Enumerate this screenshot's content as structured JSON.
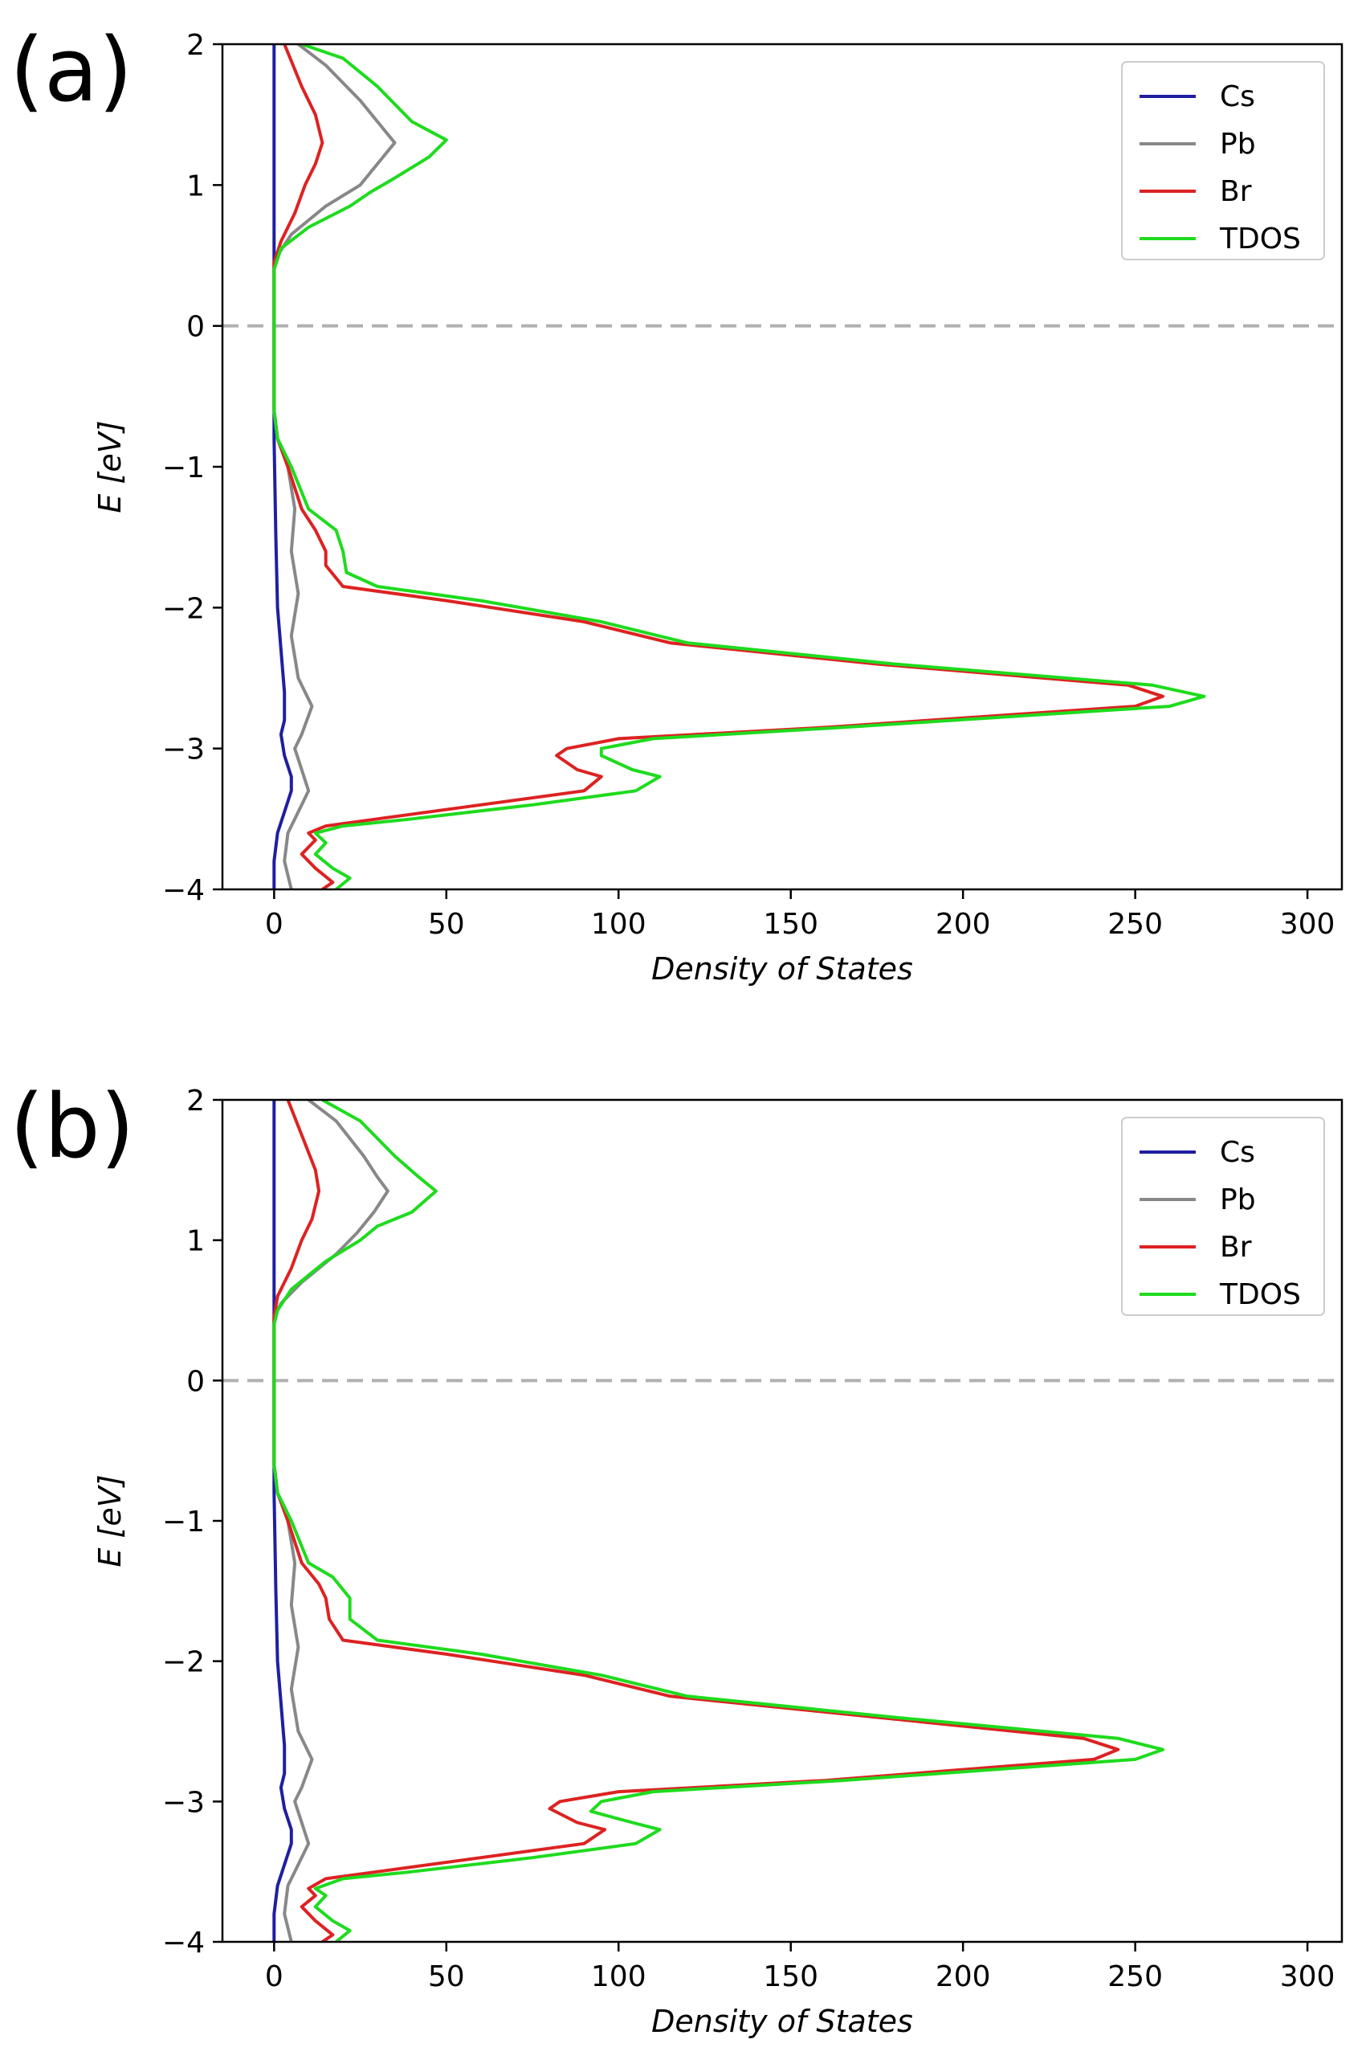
{
  "chart_data": [
    {
      "type": "line",
      "panel_label": "(a)",
      "xlabel": "Density of States",
      "ylabel": "E  [eV]",
      "xlim": [
        -15,
        310
      ],
      "ylim": [
        -4,
        2
      ],
      "xticks": [
        0,
        50,
        100,
        150,
        200,
        250,
        300
      ],
      "yticks": [
        2,
        1,
        0,
        -1,
        -2,
        -3,
        -4
      ],
      "xtick_labels": [
        "0",
        "50",
        "100",
        "150",
        "200",
        "250",
        "300"
      ],
      "ytick_labels": [
        "2",
        "1",
        "0",
        "−1",
        "−2",
        "−3",
        "−4"
      ],
      "fermi_level": 0,
      "legend_position": "top-right",
      "series": [
        {
          "name": "Cs",
          "color": "#1f1fa0",
          "points": [
            [
              0,
              2.0
            ],
            [
              0,
              1.0
            ],
            [
              0,
              0.5
            ],
            [
              0,
              -0.8
            ],
            [
              0.5,
              -1.5
            ],
            [
              1,
              -2.0
            ],
            [
              2,
              -2.3
            ],
            [
              3,
              -2.6
            ],
            [
              3,
              -2.8
            ],
            [
              2,
              -2.9
            ],
            [
              3,
              -3.05
            ],
            [
              5,
              -3.2
            ],
            [
              5,
              -3.3
            ],
            [
              3,
              -3.45
            ],
            [
              1,
              -3.6
            ],
            [
              0,
              -3.8
            ],
            [
              0,
              -4.0
            ]
          ]
        },
        {
          "name": "Pb",
          "color": "#888888",
          "points": [
            [
              7,
              2.0
            ],
            [
              15,
              1.85
            ],
            [
              25,
              1.6
            ],
            [
              30,
              1.45
            ],
            [
              35,
              1.3
            ],
            [
              30,
              1.15
            ],
            [
              25,
              1.0
            ],
            [
              15,
              0.85
            ],
            [
              5,
              0.65
            ],
            [
              1,
              0.5
            ],
            [
              0,
              0.4
            ],
            [
              0,
              -0.6
            ],
            [
              1,
              -0.8
            ],
            [
              4,
              -1.0
            ],
            [
              6,
              -1.3
            ],
            [
              5,
              -1.6
            ],
            [
              7,
              -1.9
            ],
            [
              5,
              -2.2
            ],
            [
              7,
              -2.5
            ],
            [
              11,
              -2.7
            ],
            [
              8,
              -2.9
            ],
            [
              6,
              -3.0
            ],
            [
              8,
              -3.15
            ],
            [
              10,
              -3.3
            ],
            [
              7,
              -3.45
            ],
            [
              4,
              -3.6
            ],
            [
              3,
              -3.8
            ],
            [
              5,
              -4.0
            ]
          ]
        },
        {
          "name": "Br",
          "color": "#dd2222",
          "points": [
            [
              3,
              2.0
            ],
            [
              8,
              1.7
            ],
            [
              12,
              1.5
            ],
            [
              14,
              1.3
            ],
            [
              12,
              1.15
            ],
            [
              9,
              1.0
            ],
            [
              6,
              0.8
            ],
            [
              2,
              0.6
            ],
            [
              0,
              0.45
            ],
            [
              0,
              -0.6
            ],
            [
              1,
              -0.8
            ],
            [
              4,
              -1.0
            ],
            [
              8,
              -1.3
            ],
            [
              12,
              -1.45
            ],
            [
              15,
              -1.6
            ],
            [
              15,
              -1.7
            ],
            [
              20,
              -1.85
            ],
            [
              50,
              -1.95
            ],
            [
              90,
              -2.1
            ],
            [
              115,
              -2.25
            ],
            [
              175,
              -2.4
            ],
            [
              248,
              -2.55
            ],
            [
              258,
              -2.63
            ],
            [
              250,
              -2.7
            ],
            [
              160,
              -2.85
            ],
            [
              100,
              -2.93
            ],
            [
              85,
              -3.0
            ],
            [
              82,
              -3.05
            ],
            [
              88,
              -3.15
            ],
            [
              95,
              -3.2
            ],
            [
              90,
              -3.3
            ],
            [
              60,
              -3.4
            ],
            [
              30,
              -3.5
            ],
            [
              15,
              -3.55
            ],
            [
              10,
              -3.6
            ],
            [
              12,
              -3.65
            ],
            [
              8,
              -3.75
            ],
            [
              12,
              -3.85
            ],
            [
              17,
              -3.95
            ],
            [
              14,
              -4.0
            ]
          ]
        },
        {
          "name": "TDOS",
          "color": "#1edb1e",
          "points": [
            [
              8,
              2.0
            ],
            [
              20,
              1.9
            ],
            [
              30,
              1.7
            ],
            [
              40,
              1.45
            ],
            [
              50,
              1.32
            ],
            [
              45,
              1.2
            ],
            [
              35,
              1.05
            ],
            [
              28,
              0.95
            ],
            [
              22,
              0.85
            ],
            [
              10,
              0.7
            ],
            [
              2,
              0.55
            ],
            [
              0,
              0.4
            ],
            [
              0,
              -0.6
            ],
            [
              1,
              -0.8
            ],
            [
              5,
              -1.0
            ],
            [
              10,
              -1.3
            ],
            [
              18,
              -1.45
            ],
            [
              20,
              -1.6
            ],
            [
              21,
              -1.75
            ],
            [
              30,
              -1.85
            ],
            [
              60,
              -1.95
            ],
            [
              95,
              -2.1
            ],
            [
              120,
              -2.25
            ],
            [
              180,
              -2.4
            ],
            [
              255,
              -2.55
            ],
            [
              270,
              -2.63
            ],
            [
              260,
              -2.7
            ],
            [
              165,
              -2.85
            ],
            [
              110,
              -2.93
            ],
            [
              95,
              -3.0
            ],
            [
              95,
              -3.05
            ],
            [
              104,
              -3.15
            ],
            [
              112,
              -3.2
            ],
            [
              105,
              -3.3
            ],
            [
              75,
              -3.4
            ],
            [
              40,
              -3.5
            ],
            [
              20,
              -3.55
            ],
            [
              12,
              -3.6
            ],
            [
              15,
              -3.67
            ],
            [
              12,
              -3.75
            ],
            [
              17,
              -3.85
            ],
            [
              22,
              -3.92
            ],
            [
              18,
              -4.0
            ]
          ]
        }
      ]
    },
    {
      "type": "line",
      "panel_label": "(b)",
      "xlabel": "Density of States",
      "ylabel": "E  [eV]",
      "xlim": [
        -15,
        310
      ],
      "ylim": [
        -4,
        2
      ],
      "xticks": [
        0,
        50,
        100,
        150,
        200,
        250,
        300
      ],
      "yticks": [
        2,
        1,
        0,
        -1,
        -2,
        -3,
        -4
      ],
      "xtick_labels": [
        "0",
        "50",
        "100",
        "150",
        "200",
        "250",
        "300"
      ],
      "ytick_labels": [
        "2",
        "1",
        "0",
        "−1",
        "−2",
        "−3",
        "−4"
      ],
      "fermi_level": 0,
      "legend_position": "top-right",
      "series": [
        {
          "name": "Cs",
          "color": "#1f1fa0",
          "points": [
            [
              0,
              2.0
            ],
            [
              0,
              1.0
            ],
            [
              0,
              0.5
            ],
            [
              0,
              -0.8
            ],
            [
              0.5,
              -1.5
            ],
            [
              1,
              -2.0
            ],
            [
              2,
              -2.3
            ],
            [
              3,
              -2.6
            ],
            [
              3,
              -2.8
            ],
            [
              2,
              -2.9
            ],
            [
              3,
              -3.05
            ],
            [
              5,
              -3.2
            ],
            [
              5,
              -3.3
            ],
            [
              3,
              -3.45
            ],
            [
              1,
              -3.6
            ],
            [
              0,
              -3.8
            ],
            [
              0,
              -4.0
            ]
          ]
        },
        {
          "name": "Pb",
          "color": "#888888",
          "points": [
            [
              10,
              2.0
            ],
            [
              18,
              1.85
            ],
            [
              26,
              1.6
            ],
            [
              30,
              1.45
            ],
            [
              33,
              1.35
            ],
            [
              29,
              1.2
            ],
            [
              24,
              1.05
            ],
            [
              18,
              0.9
            ],
            [
              8,
              0.7
            ],
            [
              2,
              0.55
            ],
            [
              0,
              0.45
            ],
            [
              0,
              -0.6
            ],
            [
              1,
              -0.8
            ],
            [
              4,
              -1.0
            ],
            [
              6,
              -1.3
            ],
            [
              5,
              -1.6
            ],
            [
              7,
              -1.9
            ],
            [
              5,
              -2.2
            ],
            [
              7,
              -2.5
            ],
            [
              11,
              -2.7
            ],
            [
              8,
              -2.9
            ],
            [
              6,
              -3.0
            ],
            [
              8,
              -3.15
            ],
            [
              10,
              -3.3
            ],
            [
              7,
              -3.45
            ],
            [
              4,
              -3.6
            ],
            [
              3,
              -3.8
            ],
            [
              5,
              -4.0
            ]
          ]
        },
        {
          "name": "Br",
          "color": "#dd2222",
          "points": [
            [
              4,
              2.0
            ],
            [
              8,
              1.75
            ],
            [
              12,
              1.5
            ],
            [
              13,
              1.35
            ],
            [
              11,
              1.15
            ],
            [
              8,
              1.0
            ],
            [
              5,
              0.8
            ],
            [
              1,
              0.6
            ],
            [
              0,
              0.45
            ],
            [
              0,
              -0.6
            ],
            [
              1,
              -0.8
            ],
            [
              4,
              -1.0
            ],
            [
              8,
              -1.3
            ],
            [
              13,
              -1.45
            ],
            [
              15,
              -1.55
            ],
            [
              16,
              -1.7
            ],
            [
              20,
              -1.85
            ],
            [
              50,
              -1.95
            ],
            [
              90,
              -2.1
            ],
            [
              115,
              -2.25
            ],
            [
              175,
              -2.4
            ],
            [
              235,
              -2.55
            ],
            [
              245,
              -2.63
            ],
            [
              238,
              -2.7
            ],
            [
              160,
              -2.85
            ],
            [
              100,
              -2.93
            ],
            [
              83,
              -3.0
            ],
            [
              80,
              -3.05
            ],
            [
              88,
              -3.15
            ],
            [
              96,
              -3.2
            ],
            [
              90,
              -3.3
            ],
            [
              60,
              -3.4
            ],
            [
              30,
              -3.5
            ],
            [
              15,
              -3.55
            ],
            [
              10,
              -3.62
            ],
            [
              12,
              -3.67
            ],
            [
              8,
              -3.75
            ],
            [
              12,
              -3.85
            ],
            [
              17,
              -3.95
            ],
            [
              14,
              -4.0
            ]
          ]
        },
        {
          "name": "TDOS",
          "color": "#1edb1e",
          "points": [
            [
              14,
              2.0
            ],
            [
              25,
              1.85
            ],
            [
              35,
              1.6
            ],
            [
              42,
              1.45
            ],
            [
              47,
              1.35
            ],
            [
              40,
              1.2
            ],
            [
              30,
              1.1
            ],
            [
              25,
              1.0
            ],
            [
              15,
              0.85
            ],
            [
              5,
              0.65
            ],
            [
              1,
              0.5
            ],
            [
              0,
              0.4
            ],
            [
              0,
              -0.6
            ],
            [
              1,
              -0.8
            ],
            [
              5,
              -1.0
            ],
            [
              10,
              -1.3
            ],
            [
              17,
              -1.4
            ],
            [
              22,
              -1.55
            ],
            [
              22,
              -1.7
            ],
            [
              30,
              -1.85
            ],
            [
              60,
              -1.95
            ],
            [
              95,
              -2.1
            ],
            [
              120,
              -2.25
            ],
            [
              180,
              -2.4
            ],
            [
              245,
              -2.55
            ],
            [
              258,
              -2.63
            ],
            [
              250,
              -2.7
            ],
            [
              165,
              -2.85
            ],
            [
              110,
              -2.93
            ],
            [
              95,
              -3.0
            ],
            [
              92,
              -3.07
            ],
            [
              104,
              -3.15
            ],
            [
              112,
              -3.2
            ],
            [
              105,
              -3.3
            ],
            [
              75,
              -3.4
            ],
            [
              40,
              -3.5
            ],
            [
              20,
              -3.55
            ],
            [
              12,
              -3.62
            ],
            [
              15,
              -3.67
            ],
            [
              12,
              -3.75
            ],
            [
              17,
              -3.85
            ],
            [
              22,
              -3.92
            ],
            [
              18,
              -4.0
            ]
          ]
        }
      ]
    }
  ]
}
